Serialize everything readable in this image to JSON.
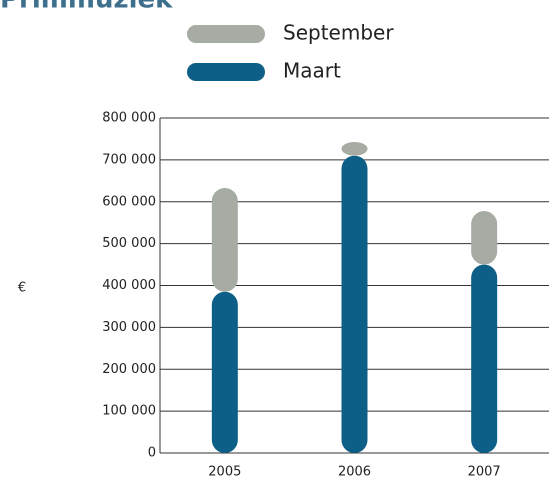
{
  "chart_data": {
    "type": "bar",
    "title": "Primmuziek",
    "y_label": "€",
    "categories": [
      "2005",
      "2006",
      "2007"
    ],
    "series": [
      {
        "name": "Maart",
        "color": "#0e5f87",
        "values": [
          385000,
          710000,
          450000
        ]
      },
      {
        "name": "September",
        "color": "#a6aca4",
        "values": [
          255000,
          40000,
          135000
        ]
      }
    ],
    "stacked": true,
    "ylim": [
      0,
      800000
    ],
    "yticks": [
      0,
      {
        "value": 100000,
        "label": "100 000"
      },
      {
        "value": 200000,
        "label": "200 000"
      },
      {
        "value": 300000,
        "label": "300 000"
      },
      {
        "value": 400000,
        "label": "400 000"
      },
      {
        "value": 500000,
        "label": "500 000"
      },
      {
        "value": 600000,
        "label": "600 000"
      },
      {
        "value": 700000,
        "label": "700 000"
      },
      {
        "value": 800000,
        "label": "800 000"
      }
    ],
    "grid": true
  }
}
